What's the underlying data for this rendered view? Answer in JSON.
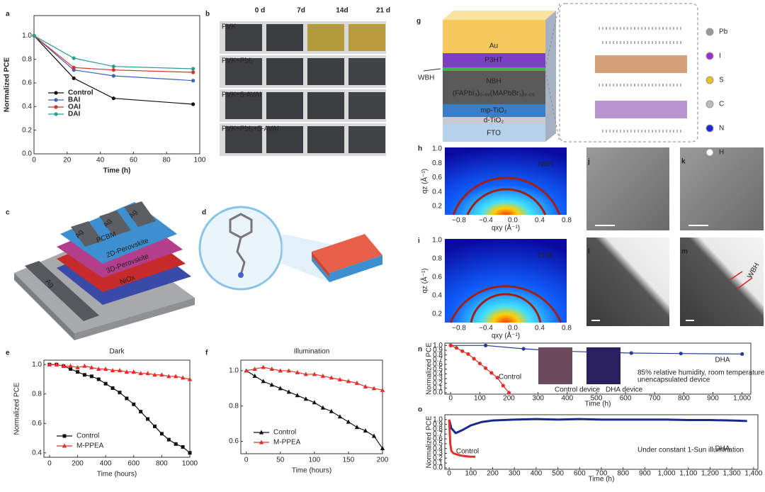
{
  "figure": {
    "panel_letters": [
      "a",
      "b",
      "c",
      "d",
      "e",
      "f",
      "g",
      "h",
      "i",
      "j",
      "k",
      "l",
      "m",
      "n",
      "o"
    ]
  },
  "chart_data": [
    {
      "type": "line",
      "xlabel": "Time (h)",
      "ylabel": "Normalized PCE",
      "xlim": [
        0,
        100
      ],
      "xticks": [
        0,
        20,
        40,
        60,
        80,
        100
      ],
      "ylim": [
        0,
        1.17
      ],
      "yticks": [
        {
          "value": 0,
          "label": "0.0"
        },
        0.2,
        0.4,
        0.6,
        0.8,
        {
          "value": 1,
          "label": "1.0"
        }
      ],
      "legend": "lower left",
      "series": [
        {
          "name": "Control",
          "color": "#111111",
          "marker": "circle",
          "x": [
            0,
            24,
            48,
            96
          ],
          "values": [
            1.0,
            0.64,
            0.47,
            0.42
          ]
        },
        {
          "name": "BAI",
          "color": "#3f5fbf",
          "marker": "circle",
          "x": [
            0,
            24,
            48,
            96
          ],
          "values": [
            1.0,
            0.71,
            0.66,
            0.62
          ]
        },
        {
          "name": "OAI",
          "color": "#d6322e",
          "marker": "circle",
          "x": [
            0,
            24,
            48,
            96
          ],
          "values": [
            1.0,
            0.73,
            0.71,
            0.69
          ]
        },
        {
          "name": "DAI",
          "color": "#2a9d8f",
          "marker": "circle",
          "x": [
            0,
            24,
            48,
            96
          ],
          "values": [
            1.0,
            0.81,
            0.74,
            0.72
          ]
        }
      ]
    },
    {
      "type": "line",
      "title": "Dark",
      "xlabel": "Time (hours)",
      "ylabel": "Normalized PCE",
      "xlim": [
        -40,
        1000
      ],
      "xticks": [
        0,
        200,
        400,
        600,
        800,
        1000
      ],
      "ylim": [
        0.37,
        1.03
      ],
      "yticks": [
        0.4,
        0.6,
        0.8,
        {
          "value": 1,
          "label": "1.0"
        }
      ],
      "legend": "lower left",
      "series": [
        {
          "name": "Control",
          "color": "#111111",
          "marker": "square",
          "x": [
            0,
            50,
            100,
            150,
            200,
            250,
            300,
            350,
            400,
            450,
            500,
            550,
            600,
            650,
            700,
            750,
            800,
            850,
            900,
            950,
            1000
          ],
          "values": [
            1.0,
            1.0,
            0.99,
            0.97,
            0.95,
            0.93,
            0.92,
            0.9,
            0.87,
            0.84,
            0.81,
            0.77,
            0.73,
            0.68,
            0.63,
            0.58,
            0.53,
            0.49,
            0.46,
            0.44,
            0.4
          ]
        },
        {
          "name": "M-PPEA",
          "color": "#e0302a",
          "marker": "triangle",
          "x": [
            0,
            50,
            100,
            150,
            200,
            250,
            300,
            350,
            400,
            450,
            500,
            550,
            600,
            650,
            700,
            750,
            800,
            850,
            900,
            950,
            1000
          ],
          "values": [
            1.0,
            1.0,
            0.99,
            0.99,
            0.98,
            0.99,
            0.98,
            0.97,
            0.97,
            0.96,
            0.96,
            0.95,
            0.95,
            0.94,
            0.94,
            0.93,
            0.93,
            0.92,
            0.92,
            0.91,
            0.9
          ]
        }
      ]
    },
    {
      "type": "line",
      "title": "Illumination",
      "title_color": "#e0302a",
      "xlabel": "Time (hours)",
      "xlim": [
        -8,
        200
      ],
      "xticks": [
        0,
        50,
        100,
        150,
        200
      ],
      "ylim": [
        0.53,
        1.06
      ],
      "yticks": [
        0.6,
        0.8,
        {
          "value": 1,
          "label": "1.0"
        }
      ],
      "legend": "lower left",
      "series": [
        {
          "name": "Control",
          "color": "#111111",
          "marker": "triangle",
          "x": [
            0,
            12.5,
            25,
            37.5,
            50,
            62.5,
            75,
            87.5,
            100,
            112.5,
            125,
            137.5,
            150,
            162.5,
            175,
            187.5,
            200
          ],
          "values": [
            1.0,
            0.97,
            0.94,
            0.92,
            0.9,
            0.88,
            0.86,
            0.84,
            0.82,
            0.79,
            0.77,
            0.74,
            0.71,
            0.68,
            0.66,
            0.63,
            0.56
          ]
        },
        {
          "name": "M-PPEA",
          "color": "#e0302a",
          "marker": "triangle",
          "x": [
            0,
            12.5,
            25,
            37.5,
            50,
            62.5,
            75,
            87.5,
            100,
            112.5,
            125,
            137.5,
            150,
            162.5,
            175,
            187.5,
            200
          ],
          "values": [
            1.0,
            1.01,
            1.02,
            1.01,
            1.0,
            1.0,
            0.99,
            0.98,
            0.98,
            0.97,
            0.96,
            0.95,
            0.94,
            0.93,
            0.91,
            0.9,
            0.89
          ]
        }
      ]
    },
    {
      "type": "line",
      "xlabel": "Time (h)",
      "ylabel": "Normalized PCE",
      "xlim": [
        -20,
        1030
      ],
      "xticks": [
        0,
        100,
        200,
        300,
        400,
        500,
        600,
        700,
        800,
        900,
        {
          "value": 1000,
          "label": "1,000"
        }
      ],
      "ylim": [
        -0.03,
        1.05
      ],
      "yticks": [
        {
          "value": 0,
          "label": "0.0"
        },
        0.1,
        0.2,
        0.3,
        0.4,
        0.5,
        0.6,
        0.7,
        0.8,
        0.9,
        {
          "value": 1,
          "label": "1.0"
        }
      ],
      "series": [
        {
          "name": "DHA",
          "color": "#2a3a9a",
          "marker": "circle",
          "x": [
            0,
            120,
            250,
            380,
            500,
            620,
            790,
            1000
          ],
          "values": [
            1.0,
            1.0,
            0.93,
            0.88,
            0.86,
            0.84,
            0.83,
            0.82
          ]
        },
        {
          "name": "Control",
          "color": "#e0302a",
          "marker": "circle",
          "x": [
            0,
            20,
            40,
            60,
            80,
            100,
            120,
            140,
            160,
            180,
            200
          ],
          "values": [
            1.0,
            0.95,
            0.88,
            0.82,
            0.72,
            0.62,
            0.52,
            0.42,
            0.32,
            0.15,
            0.0
          ]
        }
      ],
      "annotations": [
        {
          "text": "85% relative humidity, room temperature",
          "color": "#333333"
        },
        {
          "text": "unencapsulated device",
          "color": "#333333"
        },
        {
          "text": "Control device",
          "color": "#333333"
        },
        {
          "text": "DHA device",
          "color": "#333333"
        }
      ]
    },
    {
      "type": "line",
      "xlabel": "Time (h)",
      "ylabel": "Normalized PCE",
      "xlim": [
        -20,
        1420
      ],
      "xticks": [
        0,
        100,
        200,
        300,
        400,
        500,
        600,
        700,
        800,
        900,
        {
          "value": 1000,
          "label": "1,000"
        },
        {
          "value": 1100,
          "label": "1,100"
        },
        {
          "value": 1200,
          "label": "1,200"
        },
        {
          "value": 1300,
          "label": "1,300"
        },
        {
          "value": 1400,
          "label": "1,400"
        }
      ],
      "ylim": [
        -0.03,
        1.1
      ],
      "yticks": [
        {
          "value": 0,
          "label": "0.0"
        },
        0.1,
        0.2,
        0.3,
        0.4,
        0.5,
        0.6,
        0.7,
        0.8,
        0.9,
        {
          "value": 1,
          "label": "1.0"
        }
      ],
      "series": [
        {
          "name": "DHA",
          "color": "#1a2a8a",
          "marker": "none",
          "x": [
            0,
            10,
            30,
            60,
            100,
            150,
            200,
            300,
            400,
            500,
            600,
            700,
            800,
            900,
            1000,
            1100,
            1200,
            1300,
            1370
          ],
          "values": [
            1.0,
            0.82,
            0.72,
            0.78,
            0.88,
            0.95,
            0.98,
            1.0,
            1.01,
            1.0,
            1.01,
            1.0,
            1.0,
            1.0,
            1.0,
            0.99,
            0.99,
            0.98,
            0.97
          ]
        },
        {
          "name": "Control",
          "color": "#e0302a",
          "marker": "none",
          "x": [
            0,
            5,
            10,
            20,
            40,
            60,
            80,
            100,
            120
          ],
          "values": [
            1.0,
            0.5,
            0.35,
            0.3,
            0.27,
            0.25,
            0.24,
            0.23,
            0.23
          ]
        }
      ],
      "annotations": [
        {
          "text": "Under constant 1-Sun illumination",
          "color": "#333333"
        }
      ]
    }
  ],
  "panel_b": {
    "columns": [
      "0 d",
      "7d",
      "14d",
      "21 d"
    ],
    "rows": [
      "PVK",
      "PVK+PbI₂",
      "PVK+5-AVAI",
      "PVK+PbI₂+5-AVAI"
    ]
  },
  "panel_c": {
    "layers": [
      "Ag",
      "Ag",
      "Ag",
      "PCBM",
      "2D-Perovskite",
      "3D-Perovskite",
      "NiOx",
      "Ag"
    ]
  },
  "panel_g": {
    "layers": [
      "Au",
      "P3HT",
      "NBH",
      "(FAPbI₃)₀.₉₅(MAPbBr₃)₀.₀₅",
      "mp-TiO₂",
      "d-TiO₂",
      "FTO"
    ],
    "wbh": "WBH",
    "legend": [
      "Pb",
      "I",
      "S",
      "C",
      "N",
      "H"
    ]
  },
  "giwaxs": {
    "xticks": [
      "−0.8",
      "−0.4",
      "0.0",
      "0.4",
      "0.8"
    ],
    "yticks": [
      "0.2",
      "0.4",
      "0.6",
      "0.8",
      "1.0"
    ],
    "xlabel": "qxy (Å⁻¹)",
    "ylabel": "qz (Å⁻¹)"
  },
  "panel_h": {
    "label": "NBH"
  },
  "panel_i": {
    "label": "DHA"
  },
  "panel_m": {
    "label": "WBH"
  }
}
